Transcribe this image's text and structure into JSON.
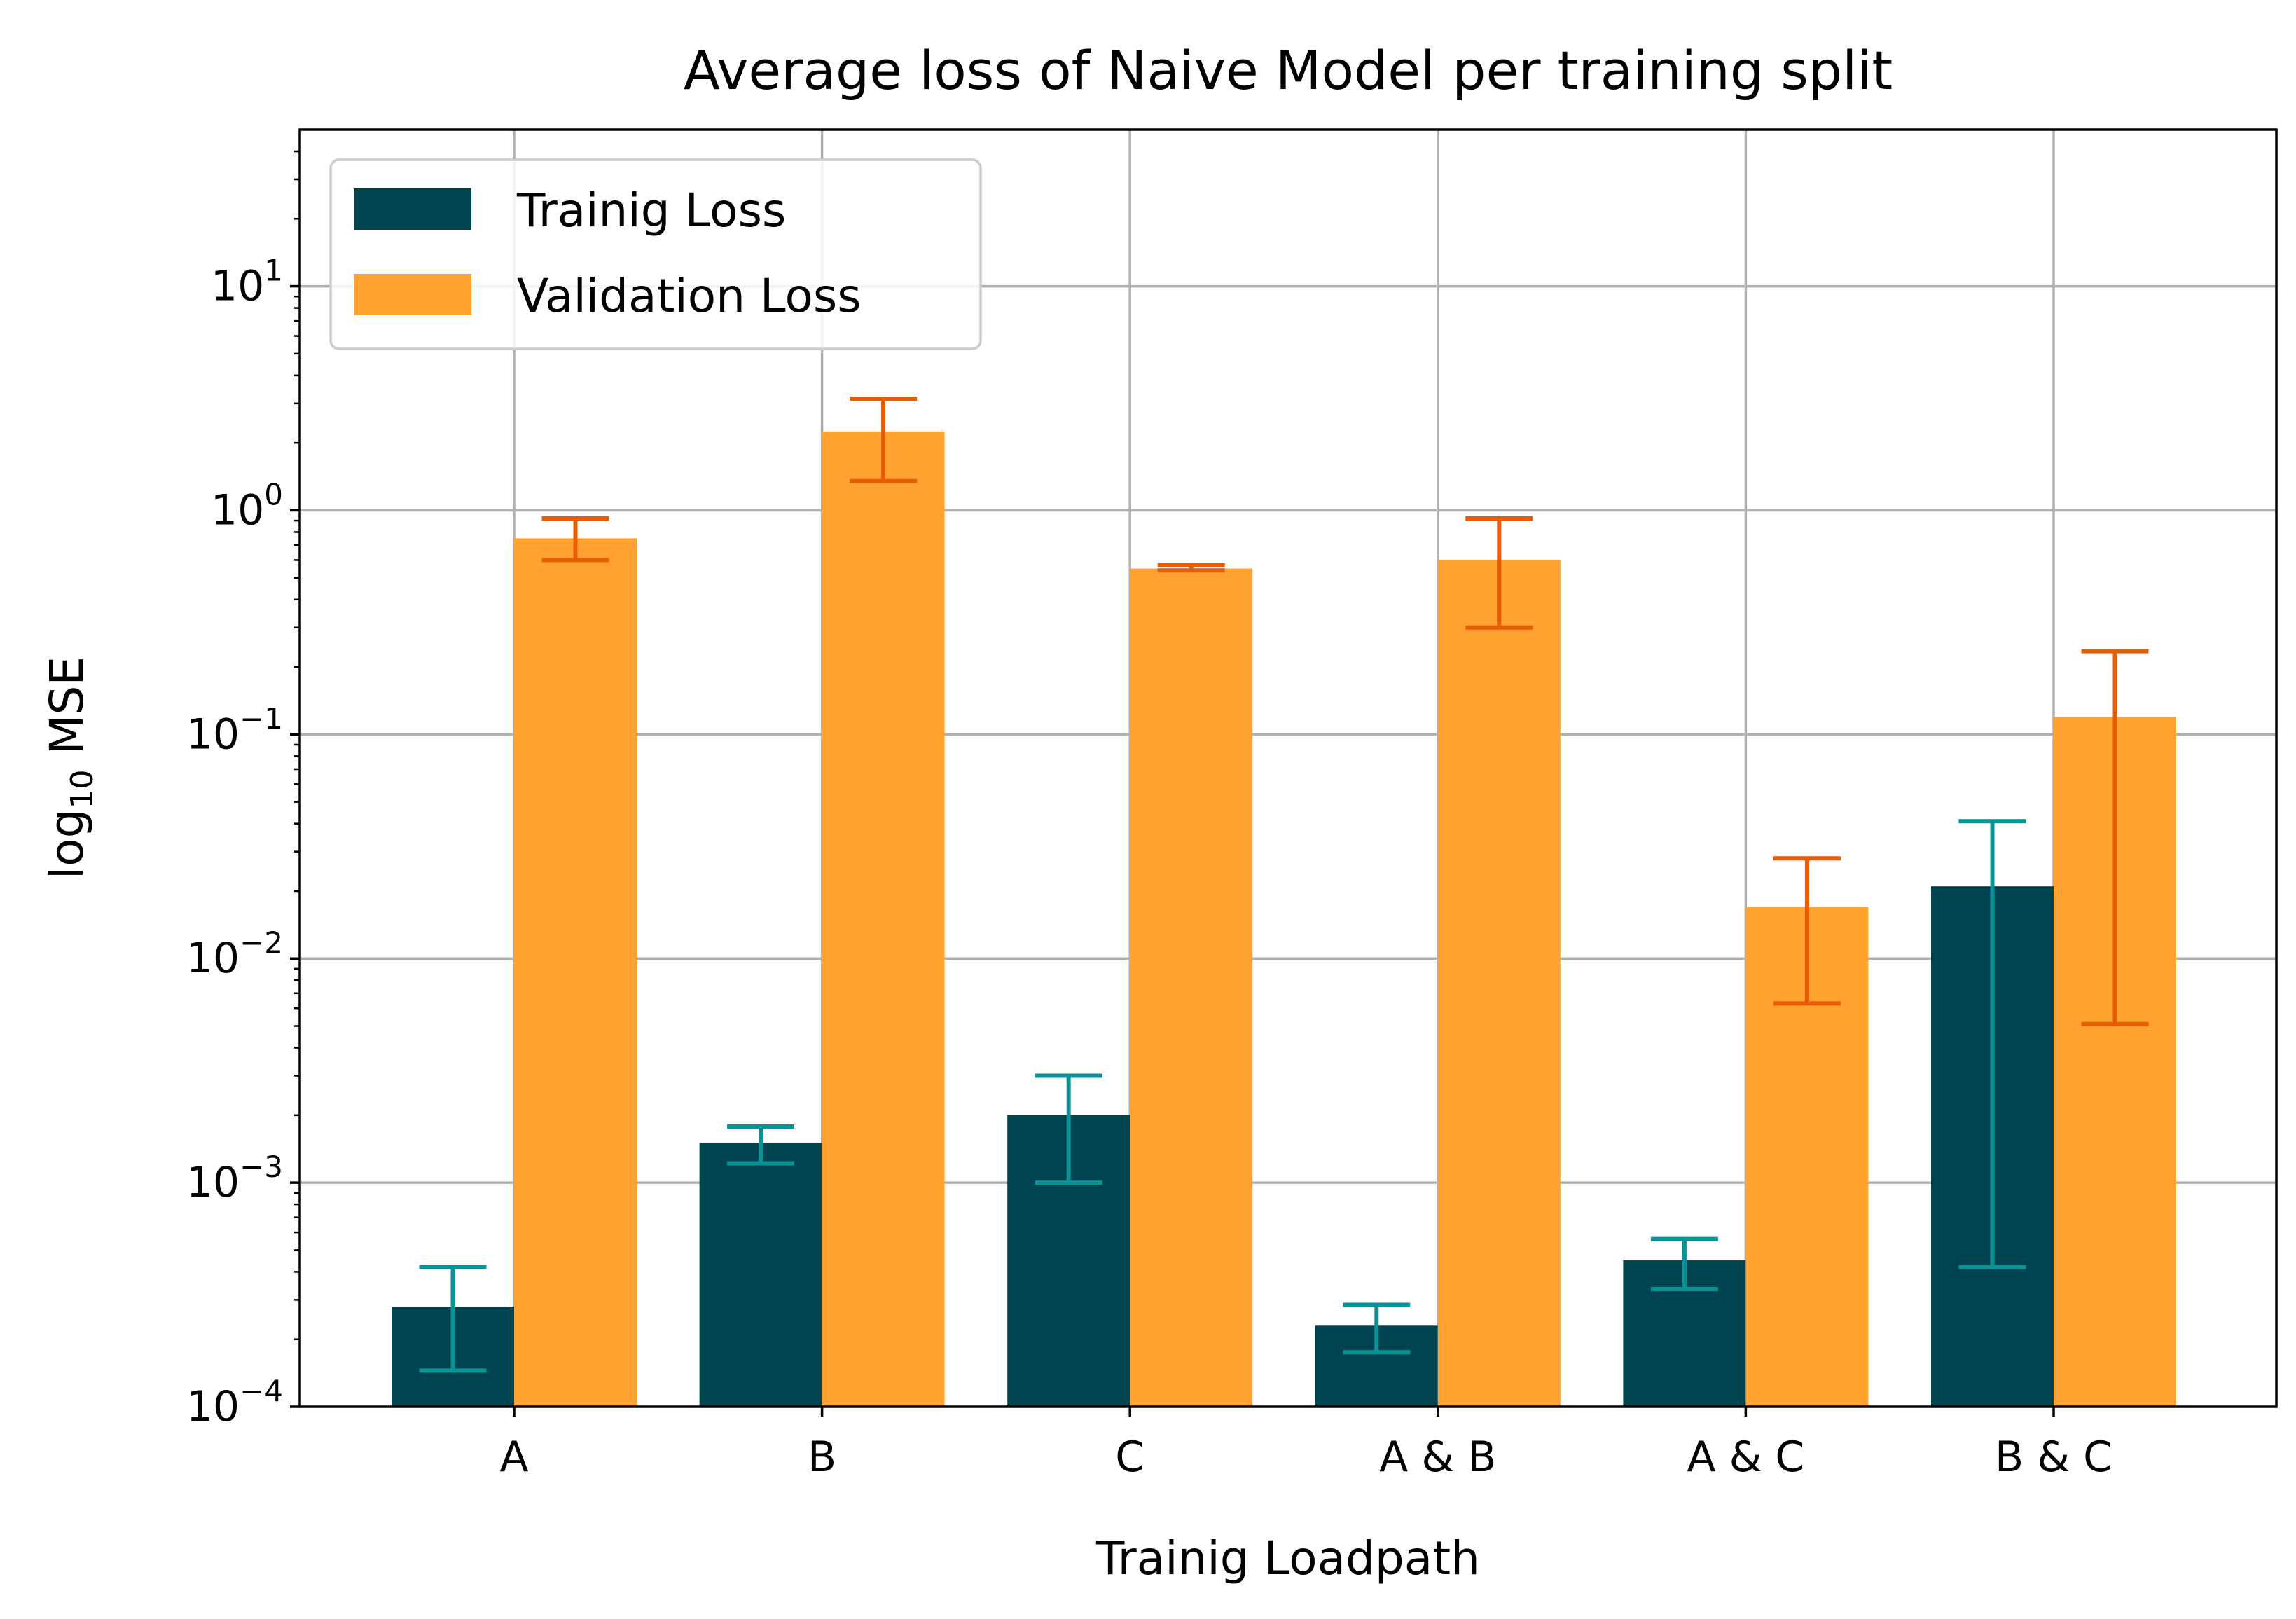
{
  "chart_data": {
    "type": "bar",
    "title": "Average loss of Naive Model per training split",
    "xlabel": "Trainig Loadpath",
    "ylabel": "log",
    "ylabel_sub": "10",
    "ylabel_rest": " MSE",
    "categories": [
      "A",
      "B",
      "C",
      "A & B",
      "A & C",
      "B & C"
    ],
    "yscale": "log",
    "ylim": [
      0.0001,
      50
    ],
    "y_ticks": [
      {
        "value": 0.0001,
        "base": "10",
        "exp": "−4"
      },
      {
        "value": 0.001,
        "base": "10",
        "exp": "−3"
      },
      {
        "value": 0.01,
        "base": "10",
        "exp": "−2"
      },
      {
        "value": 0.1,
        "base": "10",
        "exp": "−1"
      },
      {
        "value": 1,
        "base": "10",
        "exp": "0"
      },
      {
        "value": 10,
        "base": "10",
        "exp": "1"
      }
    ],
    "grid": true,
    "legend_position": "upper-left",
    "series": [
      {
        "name": "Trainig Loss",
        "color": "#004452",
        "error_color": "#0a9396",
        "values": [
          0.00028,
          0.0015,
          0.002,
          0.00023,
          0.00045,
          0.021
        ],
        "err_low": [
          0.000145,
          0.00122,
          0.001,
          0.000175,
          0.000335,
          0.00042
        ],
        "err_high": [
          0.00042,
          0.00178,
          0.003,
          0.000285,
          0.00056,
          0.041
        ]
      },
      {
        "name": "Validation Loss",
        "color": "#ffa230",
        "error_color": "#e85d04",
        "values": [
          0.75,
          2.25,
          0.55,
          0.6,
          0.017,
          0.12
        ],
        "err_low": [
          0.6,
          1.35,
          0.54,
          0.3,
          0.0063,
          0.0051
        ],
        "err_high": [
          0.92,
          3.15,
          0.57,
          0.92,
          0.028,
          0.235
        ]
      }
    ]
  }
}
